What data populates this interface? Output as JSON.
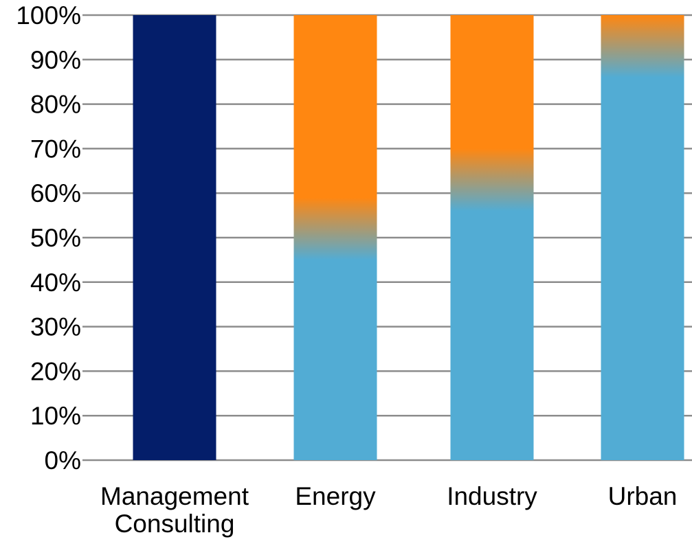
{
  "chart_data": {
    "type": "bar",
    "stacked": true,
    "normalized": true,
    "categories": [
      [
        "Management",
        "Consulting"
      ],
      [
        "Energy"
      ],
      [
        "Industry"
      ],
      [
        "Urban"
      ]
    ],
    "series": [
      {
        "values": [
          100,
          0,
          0,
          0
        ],
        "color": "#041E6A"
      },
      {
        "values": [
          0,
          52,
          63,
          93
        ],
        "color": "#52ACD4"
      },
      {
        "values": [
          0,
          48,
          37,
          7
        ],
        "color": "#FF8711"
      }
    ],
    "blend_colors": [
      "#041E6A",
      "#52ACD4",
      "#FF8711"
    ],
    "ylim": [
      0,
      100
    ],
    "yticks": [
      "0%",
      "10%",
      "20%",
      "30%",
      "40%",
      "50%",
      "60%",
      "70%",
      "80%",
      "90%",
      "100%"
    ],
    "grid": true,
    "grid_color": "#8C8C8C",
    "legend": false
  }
}
